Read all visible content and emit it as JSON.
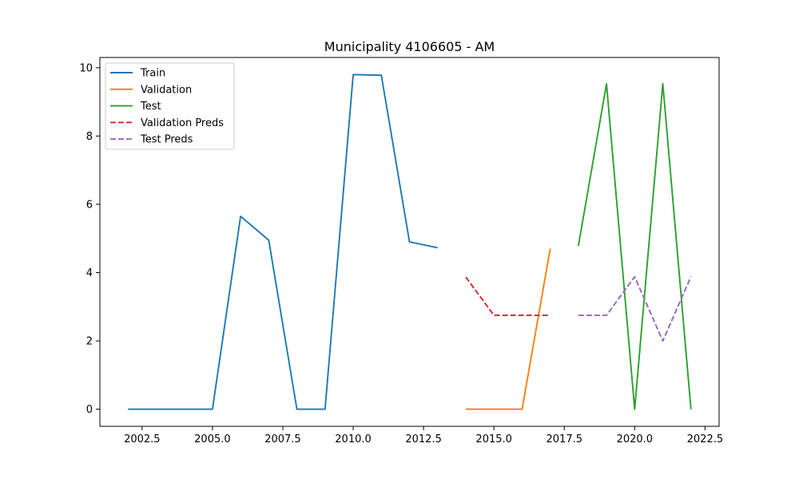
{
  "chart_data": {
    "type": "line",
    "title": "Municipality 4106605 - AM",
    "xlabel": "",
    "ylabel": "",
    "xlim": [
      2001.0,
      2023.0
    ],
    "ylim": [
      -0.5,
      10.3
    ],
    "x_ticks": [
      2002.5,
      2005.0,
      2007.5,
      2010.0,
      2012.5,
      2015.0,
      2017.5,
      2020.0,
      2022.5
    ],
    "x_tick_labels": [
      "2002.5",
      "2005.0",
      "2007.5",
      "2010.0",
      "2012.5",
      "2015.0",
      "2017.5",
      "2020.0",
      "2022.5"
    ],
    "y_ticks": [
      0,
      2,
      4,
      6,
      8,
      10
    ],
    "y_tick_labels": [
      "0",
      "2",
      "4",
      "6",
      "8",
      "10"
    ],
    "grid": false,
    "legend_position": "upper-left",
    "series": [
      {
        "name": "Train",
        "color": "#1f77b4",
        "dash": "solid",
        "points": [
          [
            2002,
            0
          ],
          [
            2003,
            0
          ],
          [
            2004,
            0
          ],
          [
            2005,
            0
          ],
          [
            2006,
            5.65
          ],
          [
            2007,
            4.95
          ],
          [
            2008,
            0
          ],
          [
            2009,
            0
          ],
          [
            2010,
            9.8
          ],
          [
            2011,
            9.78
          ],
          [
            2012,
            4.9
          ],
          [
            2013,
            4.73
          ]
        ]
      },
      {
        "name": "Validation",
        "color": "#ff7f0e",
        "dash": "solid",
        "points": [
          [
            2014,
            0
          ],
          [
            2015,
            0
          ],
          [
            2016,
            0
          ],
          [
            2017,
            4.7
          ]
        ]
      },
      {
        "name": "Test",
        "color": "#2ca02c",
        "dash": "solid",
        "points": [
          [
            2018,
            4.78
          ],
          [
            2019,
            9.53
          ],
          [
            2020,
            0
          ],
          [
            2021,
            9.53
          ],
          [
            2022,
            0
          ]
        ]
      },
      {
        "name": "Validation Preds",
        "color": "#d62728",
        "dash": "dashed",
        "points": [
          [
            2014,
            3.87
          ],
          [
            2015,
            2.75
          ],
          [
            2016,
            2.75
          ],
          [
            2017,
            2.75
          ]
        ]
      },
      {
        "name": "Test Preds",
        "color": "#9467bd",
        "dash": "dashed",
        "points": [
          [
            2018,
            2.75
          ],
          [
            2019,
            2.75
          ],
          [
            2020,
            3.88
          ],
          [
            2021,
            2.0
          ],
          [
            2022,
            3.88
          ]
        ]
      }
    ]
  }
}
